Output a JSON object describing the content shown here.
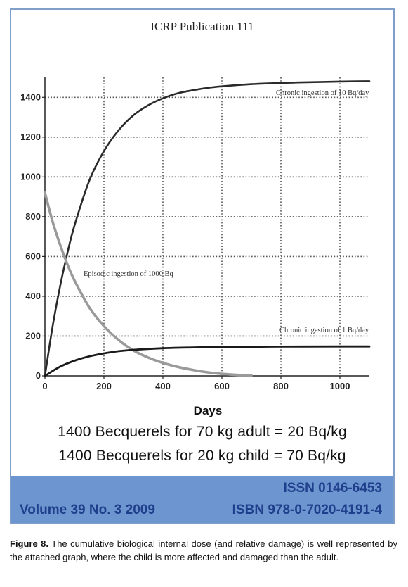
{
  "cover": {
    "title": "ICRP Publication 111",
    "line1": "1400 Becquerels for 70 kg adult = 20 Bq/kg",
    "line2": "1400 Becquerels for 20 kg child = 70 Bq/kg",
    "volume": "Volume 39 No. 3 2009",
    "issn": "ISSN 0146-6453",
    "isbn": "ISBN 978-0-7020-4191-4",
    "band_color": "#6d95cf"
  },
  "chart_data": {
    "type": "line",
    "xlabel": "Days",
    "ylabel": "",
    "xlim": [
      0,
      1100
    ],
    "ylim": [
      0,
      1500
    ],
    "x_ticks": [
      0,
      200,
      400,
      600,
      800,
      1000
    ],
    "y_ticks": [
      0,
      200,
      400,
      600,
      800,
      1000,
      1200,
      1400
    ],
    "grid": true,
    "series": [
      {
        "name": "Chronic ingestion of 10 Bq/day",
        "color": "#2a2a2a",
        "x": [
          0,
          25,
          50,
          75,
          100,
          150,
          200,
          250,
          300,
          350,
          400,
          450,
          500,
          550,
          600,
          700,
          800,
          900,
          1000,
          1100
        ],
        "y": [
          0,
          240,
          440,
          610,
          755,
          980,
          1130,
          1235,
          1310,
          1360,
          1395,
          1420,
          1435,
          1447,
          1455,
          1466,
          1472,
          1476,
          1479,
          1481
        ]
      },
      {
        "name": "Episodic ingestion of 1000 Bq",
        "color": "#9a9a9a",
        "x": [
          0,
          25,
          50,
          75,
          100,
          150,
          200,
          250,
          300,
          350,
          400,
          450,
          500,
          550,
          600,
          650,
          700
        ],
        "y": [
          920,
          780,
          665,
          565,
          480,
          345,
          250,
          180,
          128,
          92,
          65,
          45,
          30,
          18,
          10,
          5,
          2
        ]
      },
      {
        "name": "Chronic ingestion of 1 Bq/day",
        "color": "#1a1a1a",
        "x": [
          0,
          50,
          100,
          150,
          200,
          250,
          300,
          400,
          500,
          600,
          800,
          1000,
          1100
        ],
        "y": [
          0,
          45,
          76,
          98,
          113,
          124,
          131,
          139,
          143,
          145,
          147,
          148,
          148
        ]
      }
    ]
  },
  "caption": {
    "label": "Figure 8.",
    "text": " The cumulative biological internal dose (and relative damage) is well represented by the attached graph, where the child is more affected and damaged than the adult."
  }
}
